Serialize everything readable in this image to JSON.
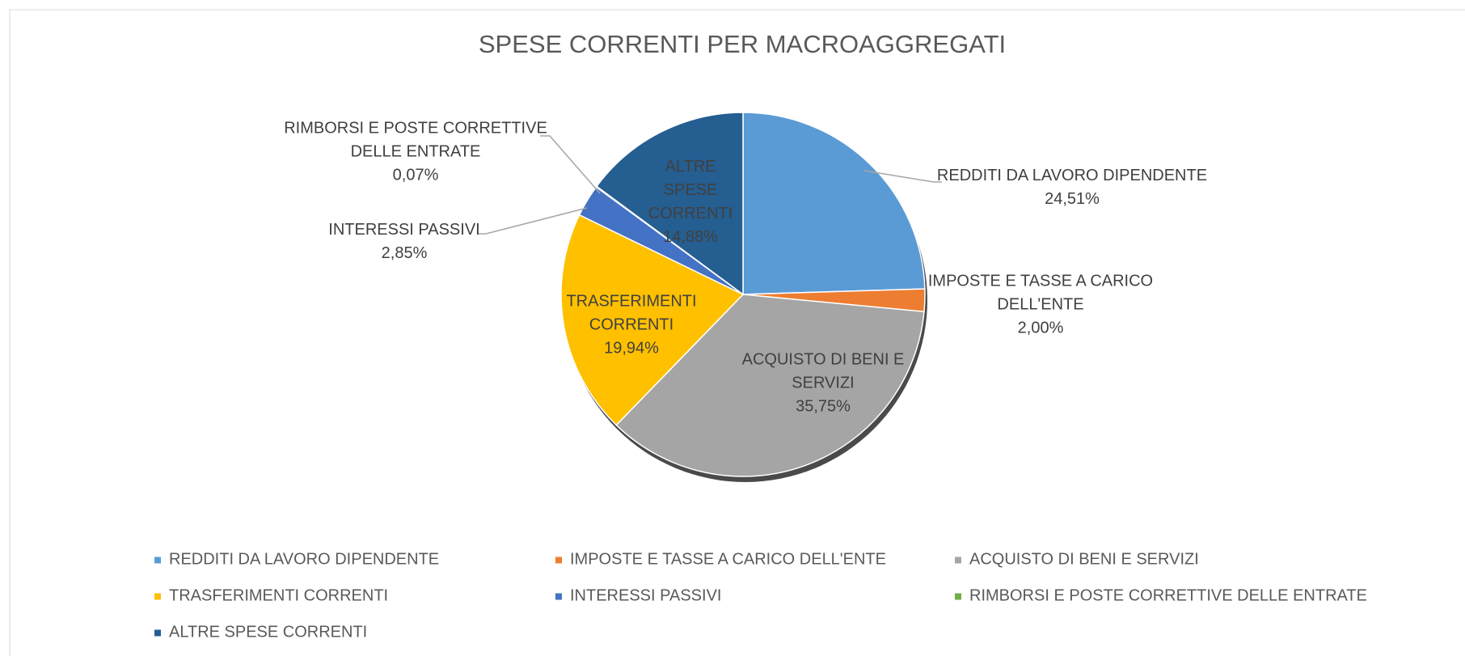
{
  "chart_data": {
    "type": "pie",
    "title": "SPESE CORRENTI PER MACROAGGREGATI",
    "categories": [
      "REDDITI DA LAVORO DIPENDENTE",
      "IMPOSTE E TASSE A CARICO DELL'ENTE",
      "ACQUISTO DI BENI E SERVIZI",
      "TRASFERIMENTI CORRENTI",
      "INTERESSI PASSIVI",
      "RIMBORSI E POSTE CORRETTIVE DELLE ENTRATE",
      "ALTRE SPESE CORRENTI"
    ],
    "values": [
      24.51,
      2.0,
      35.75,
      19.94,
      2.85,
      0.07,
      14.88
    ],
    "value_labels": [
      "24,51%",
      "2,00%",
      "35,75%",
      "19,94%",
      "2,85%",
      "0,07%",
      "14,88%"
    ],
    "colors": [
      "#5b9bd5",
      "#ed7d31",
      "#a5a5a5",
      "#ffc000",
      "#4472c4",
      "#70ad47",
      "#255e91"
    ],
    "legend": "bottom"
  }
}
